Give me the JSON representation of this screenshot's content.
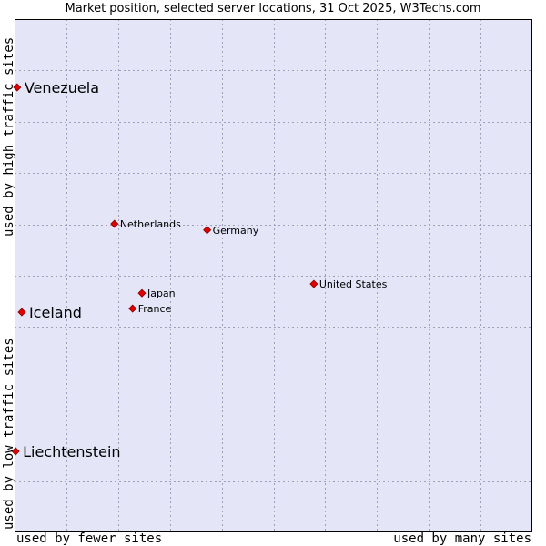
{
  "chart_data": {
    "type": "scatter",
    "title": "Market position, selected server locations, 31 Oct 2025, W3Techs.com",
    "xlabel_left": "used by fewer sites",
    "xlabel_right": "used by many sites",
    "ylabel_low": "used by low traffic sites",
    "ylabel_high": "used by high traffic sites",
    "xlim": [
      0,
      100
    ],
    "ylim": [
      0,
      100
    ],
    "grid": true,
    "colors": {
      "plot_background": "#e4e6f8",
      "grid": "#a0a0b8",
      "marker": "#e00000",
      "marker_edge": "#8b0000",
      "text": "#000000"
    },
    "points": [
      {
        "label": "Venezuela",
        "x": 0.5,
        "y": 86.7,
        "emphasis": true
      },
      {
        "label": "Netherlands",
        "x": 19.3,
        "y": 60.1,
        "emphasis": false
      },
      {
        "label": "Germany",
        "x": 37.2,
        "y": 58.9,
        "emphasis": false
      },
      {
        "label": "United States",
        "x": 57.8,
        "y": 48.4,
        "emphasis": false
      },
      {
        "label": "Japan",
        "x": 24.6,
        "y": 46.6,
        "emphasis": false
      },
      {
        "label": "France",
        "x": 22.8,
        "y": 43.6,
        "emphasis": false
      },
      {
        "label": "Iceland",
        "x": 1.4,
        "y": 42.9,
        "emphasis": true
      },
      {
        "label": "Liechtenstein",
        "x": 0.2,
        "y": 15.8,
        "emphasis": true
      }
    ]
  }
}
